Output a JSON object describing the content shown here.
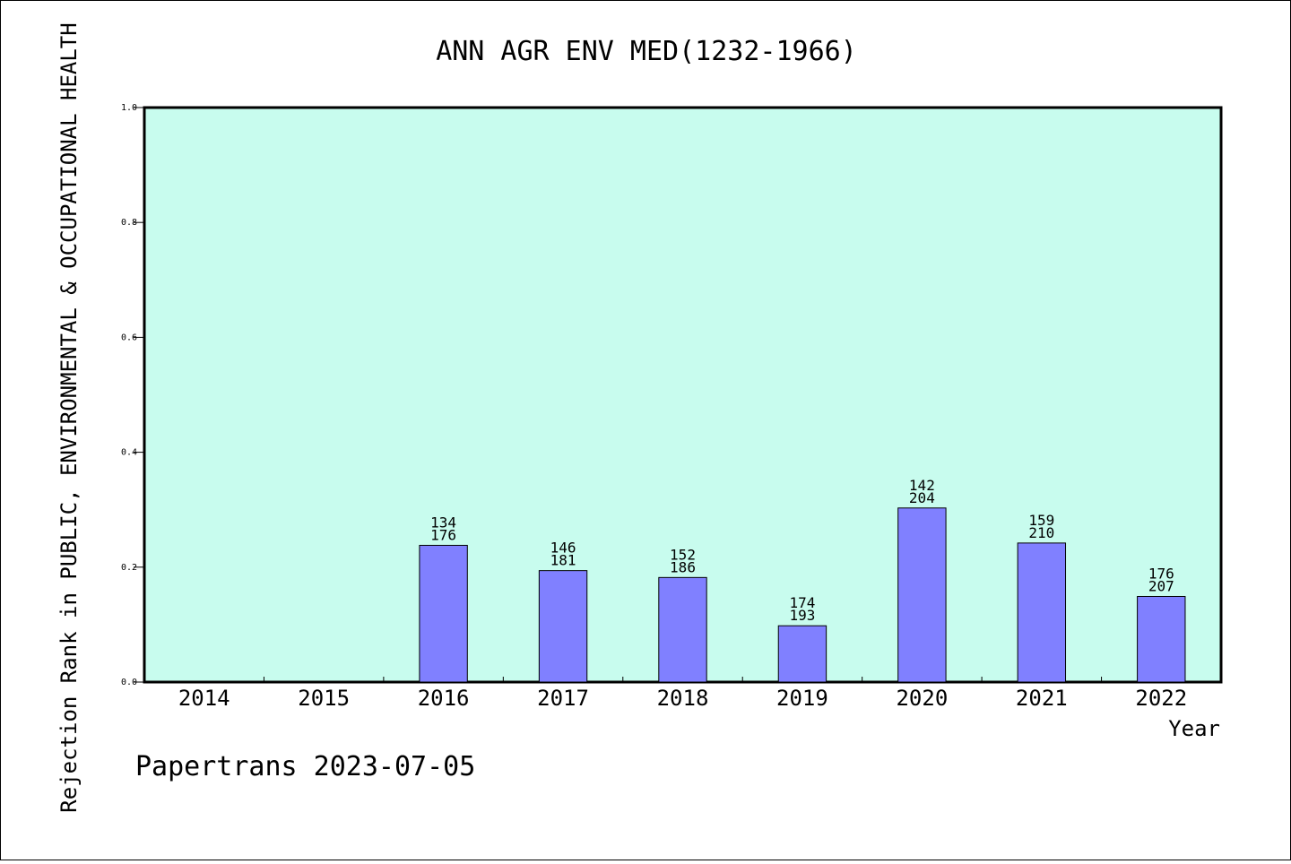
{
  "chart_data": {
    "type": "bar",
    "title": "ANN AGR ENV MED(1232-1966)",
    "ylabel": "Rejection Rank in PUBLIC, ENVIRONMENTAL & OCCUPATIONAL HEALTH",
    "xlabel": "Year",
    "categories": [
      "2014",
      "2015",
      "2016",
      "2017",
      "2018",
      "2019",
      "2020",
      "2021",
      "2022"
    ],
    "values": [
      null,
      null,
      0.238,
      0.194,
      0.182,
      0.098,
      0.303,
      0.242,
      0.149
    ],
    "labels_top": [
      "",
      "",
      "134",
      "146",
      "152",
      "174",
      "142",
      "159",
      "176"
    ],
    "labels_bottom": [
      "",
      "",
      "176",
      "181",
      "186",
      "193",
      "204",
      "210",
      "207"
    ],
    "ylim": [
      0.0,
      1.0
    ],
    "yticks": [
      "0.0",
      "0.2",
      "0.4",
      "0.6",
      "0.8",
      "1.0"
    ],
    "grid": false,
    "colors": {
      "plot_background": "#c8fcee",
      "bar_fill": "#8080ff",
      "bar_stroke": "#000000"
    }
  },
  "footer": {
    "text": "Papertrans 2023-07-05"
  }
}
